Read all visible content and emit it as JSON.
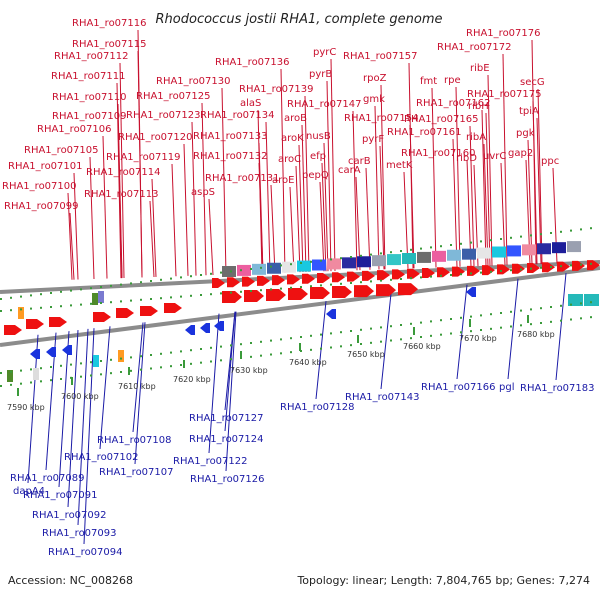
{
  "title": "Rhodococcus jostii RHA1, complete genome",
  "footer": {
    "accession": "Accession: NC_008268",
    "topology": "Topology: linear; Length: 7,804,765 bp; Genes: 7,274"
  },
  "scale_labels": [
    "7590 kbp",
    "7600 kbp",
    "7610 kbp",
    "7620 kbp",
    "7630 kbp",
    "7640 kbp",
    "7650 kbp",
    "7660 kbp",
    "7670 kbp",
    "7680 kbp"
  ],
  "top_genes": [
    "RHA1_ro07116",
    "RHA1_ro07115",
    "RHA1_ro07112",
    "RHA1_ro07111",
    "RHA1_ro07110",
    "RHA1_ro07109",
    "RHA1_ro07106",
    "RHA1_ro07105",
    "RHA1_ro07101",
    "RHA1_ro07100",
    "RHA1_ro07099",
    "RHA1_ro07125",
    "RHA1_ro07130",
    "RHA1_ro07123",
    "RHA1_ro07120",
    "RHA1_ro07119",
    "RHA1_ro07114",
    "RHA1_ro07113",
    "RHA1_ro07136",
    "RHA1_ro07139",
    "alaS",
    "RHA1_ro07134",
    "RHA1_ro07133",
    "RHA1_ro07132",
    "RHA1_ro07131",
    "aspS",
    "pyrC",
    "pyrB",
    "RHA1_ro07147",
    "aroB",
    "aroK",
    "aroC",
    "aroE",
    "nusB",
    "efp",
    "pepQ",
    "RHA1_ro07157",
    "rpoZ",
    "gmk",
    "RHA1_ro07154",
    "pyrF",
    "carB",
    "carA",
    "metK",
    "RHA1_ro07176",
    "RHA1_ro07172",
    "ribE",
    "rpe",
    "fmt",
    "RHA1_ro07162",
    "ribH",
    "RHA1_ro07165",
    "RHA1_ro07161",
    "RHA1_ro07160",
    "ribA",
    "ribD",
    "uvrC",
    "RHA1_ro07175",
    "secG",
    "tpiA",
    "pgk",
    "gap2",
    "ppc"
  ],
  "bottom_genes": [
    "RHA1_ro07166",
    "pgl",
    "RHA1_ro07183",
    "RHA1_ro07143",
    "RHA1_ro07128",
    "RHA1_ro07127",
    "RHA1_ro07124",
    "RHA1_ro07122",
    "RHA1_ro07126",
    "RHA1_ro07108",
    "RHA1_ro07107",
    "RHA1_ro07102",
    "dapA4",
    "RHA1_ro07089",
    "RHA1_ro07091",
    "RHA1_ro07092",
    "RHA1_ro07093",
    "RHA1_ro07094"
  ],
  "colors": {
    "forward_label": "#c8102e",
    "reverse_label": "#1a1aa6",
    "forward_gene": "#ee1111",
    "reverse_gene": "#1a33dd",
    "backbone": "#8c8c8c",
    "tick": "#3a9a3a"
  }
}
